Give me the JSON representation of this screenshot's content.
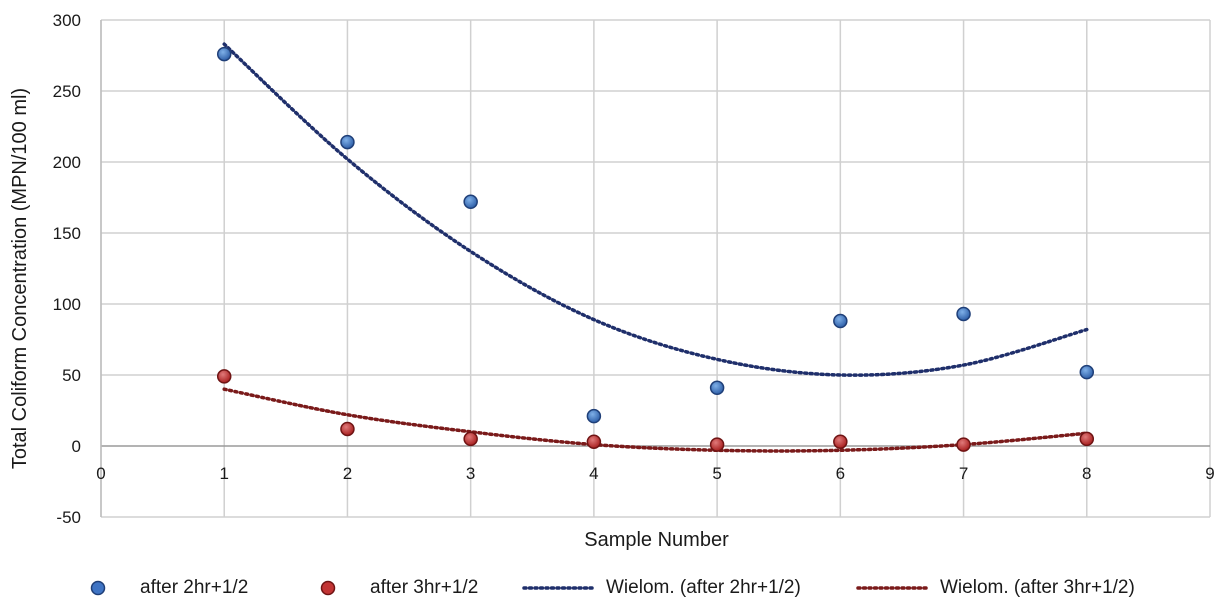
{
  "chart_data": {
    "type": "scatter",
    "title": "",
    "xlabel": "Sample Number",
    "ylabel": "Total Coliform Concentration (MPN/100 ml)",
    "xlim": [
      0,
      9
    ],
    "ylim": [
      -50,
      300
    ],
    "x_ticks": [
      0,
      1,
      2,
      3,
      4,
      5,
      6,
      7,
      8,
      9
    ],
    "y_ticks": [
      -50,
      0,
      50,
      100,
      150,
      200,
      250,
      300
    ],
    "grid": true,
    "legend_position": "bottom",
    "series": [
      {
        "name": "after 2hr+1/2",
        "kind": "points",
        "color": "#2e5fa8",
        "x": [
          1,
          2,
          3,
          4,
          5,
          6,
          7,
          8
        ],
        "y": [
          276,
          214,
          172,
          21,
          41,
          88,
          93,
          52
        ]
      },
      {
        "name": "after 3hr+1/2",
        "kind": "points",
        "color": "#b22222",
        "x": [
          1,
          2,
          3,
          4,
          5,
          6,
          7,
          8
        ],
        "y": [
          49,
          12,
          5,
          3,
          1,
          3,
          1,
          5
        ]
      },
      {
        "name": "Wielom. (after 2hr+1/2)",
        "kind": "trendline",
        "color": "#1f2f6b",
        "x": [
          1,
          2,
          3,
          4,
          5,
          6,
          7,
          8
        ],
        "y": [
          283,
          202,
          137,
          89,
          61,
          50,
          57,
          82
        ]
      },
      {
        "name": "Wielom. (after 3hr+1/2)",
        "kind": "trendline",
        "color": "#7a1a1a",
        "x": [
          1,
          2,
          3,
          4,
          5,
          6,
          7,
          8
        ],
        "y": [
          40,
          22,
          10,
          1,
          -3,
          -3,
          1,
          9
        ]
      }
    ]
  }
}
